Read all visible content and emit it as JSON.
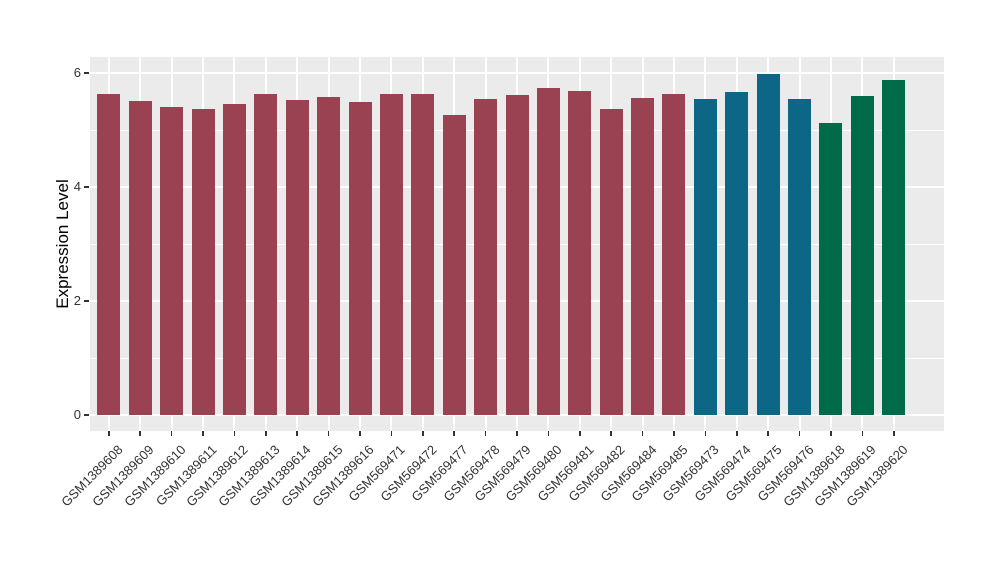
{
  "figure": {
    "background": "#FFFFFF",
    "panel_background": "#EBEBEB",
    "gridline_color": "#FFFFFF",
    "tick_color": "#333333"
  },
  "chart_data": {
    "type": "bar",
    "title": "",
    "xlabel": "",
    "ylabel": "Expression Level",
    "ylim": [
      0,
      6
    ],
    "yticks": [
      0,
      2,
      4,
      6
    ],
    "yticks_minor": [
      1,
      3,
      5
    ],
    "grid": true,
    "legend_position": "none",
    "x_label_angle": 45,
    "categories": [
      "GSM1389608",
      "GSM1389609",
      "GSM1389610",
      "GSM1389611",
      "GSM1389612",
      "GSM1389613",
      "GSM1389614",
      "GSM1389615",
      "GSM1389616",
      "GSM569471",
      "GSM569472",
      "GSM569477",
      "GSM569478",
      "GSM569479",
      "GSM569480",
      "GSM569481",
      "GSM569482",
      "GSM569484",
      "GSM569485",
      "GSM569473",
      "GSM569474",
      "GSM569475",
      "GSM569476",
      "GSM1389618",
      "GSM1389619",
      "GSM1389620"
    ],
    "values": [
      5.63,
      5.51,
      5.41,
      5.36,
      5.45,
      5.63,
      5.52,
      5.58,
      5.5,
      5.63,
      5.63,
      5.27,
      5.54,
      5.61,
      5.74,
      5.68,
      5.37,
      5.57,
      5.64,
      5.55,
      5.66,
      5.98,
      5.55,
      5.12,
      5.6,
      5.87
    ],
    "colors": [
      "#9A4252",
      "#9A4252",
      "#9A4252",
      "#9A4252",
      "#9A4252",
      "#9A4252",
      "#9A4252",
      "#9A4252",
      "#9A4252",
      "#9A4252",
      "#9A4252",
      "#9A4252",
      "#9A4252",
      "#9A4252",
      "#9A4252",
      "#9A4252",
      "#9A4252",
      "#9A4252",
      "#9A4252",
      "#0C6787",
      "#0C6787",
      "#0C6787",
      "#0C6787",
      "#006B48",
      "#006B48",
      "#006B48"
    ]
  }
}
